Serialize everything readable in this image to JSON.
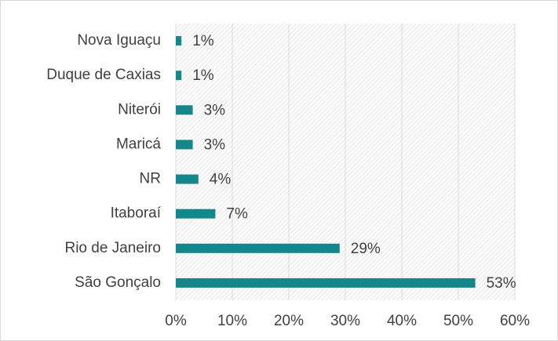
{
  "chart_data": {
    "type": "hbar",
    "categories": [
      "Nova Iguaçu",
      "Duque de Caxias",
      "Niterói",
      "Maricá",
      "NR",
      "Itaboraí",
      "Rio de Janeiro",
      "São Gonçalo"
    ],
    "values": [
      1,
      1,
      3,
      3,
      4,
      7,
      29,
      53
    ],
    "value_labels": [
      "1%",
      "1%",
      "3%",
      "3%",
      "4%",
      "7%",
      "29%",
      "53%"
    ],
    "color": "#14878b",
    "xlim": [
      0,
      60
    ],
    "xticks": [
      {
        "value": 0,
        "label": "0%"
      },
      {
        "value": 10,
        "label": "10%"
      },
      {
        "value": 20,
        "label": "20%"
      },
      {
        "value": 30,
        "label": "30%"
      },
      {
        "value": 40,
        "label": "40%"
      },
      {
        "value": 50,
        "label": "50%"
      },
      {
        "value": 60,
        "label": "60%"
      }
    ],
    "grid": true
  }
}
